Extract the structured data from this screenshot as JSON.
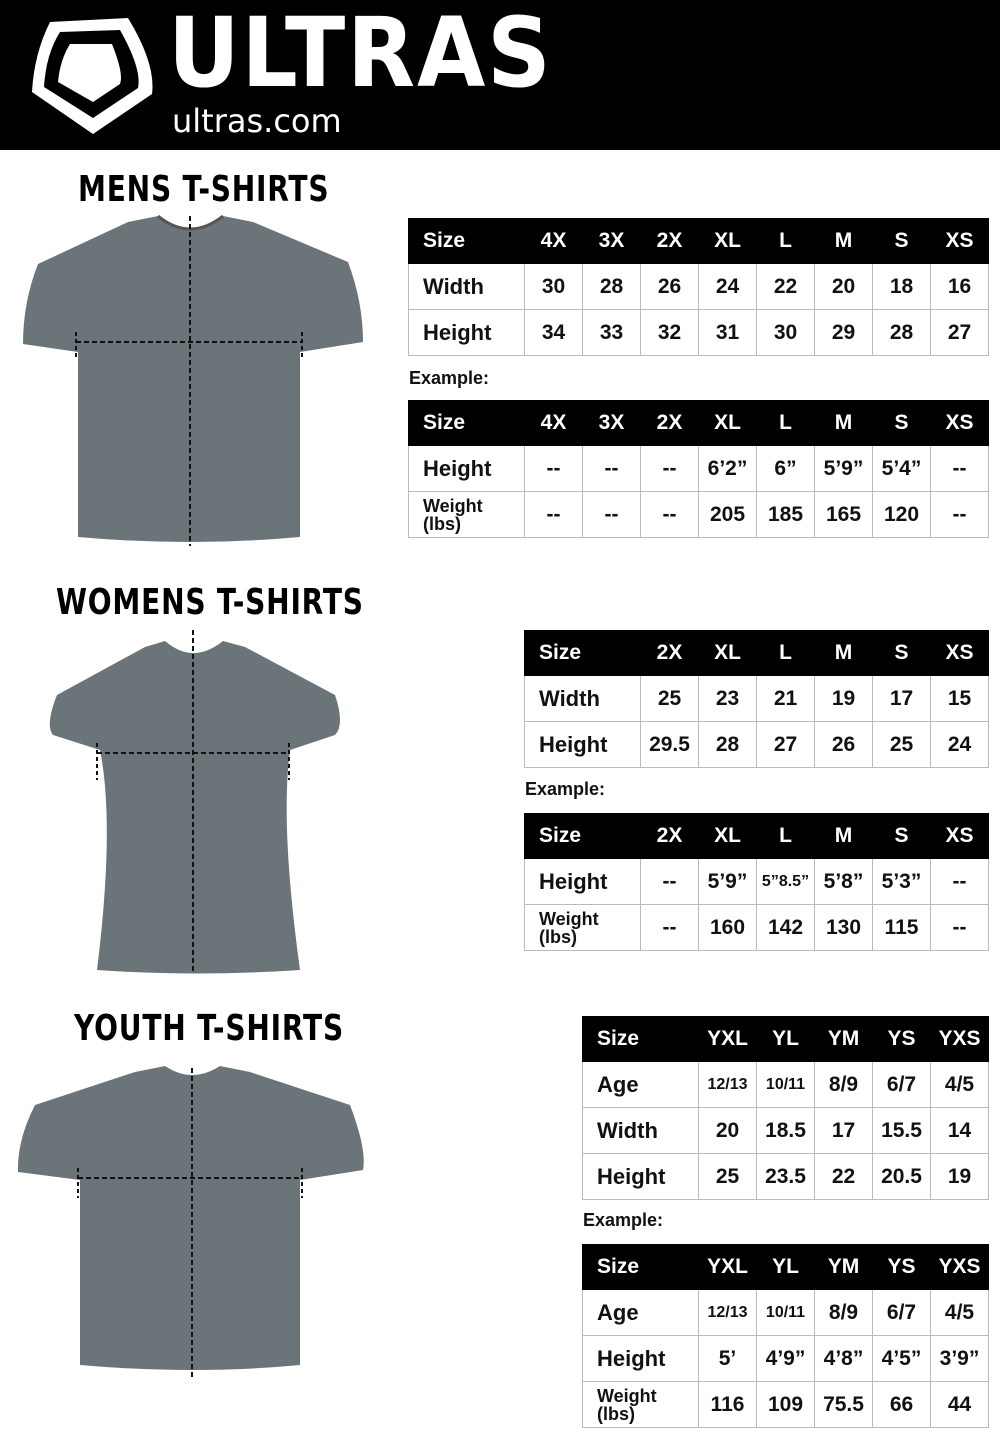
{
  "header": {
    "brand": "ULTRAS",
    "site": "ultras.com",
    "icon": "shield-logo-icon"
  },
  "colors": {
    "header_bg": "#000000",
    "shirt": "#6b7479"
  },
  "sections": [
    {
      "key": "mens",
      "title": "MENS  T-SHIRTS",
      "sizes": {
        "columns": [
          "Size",
          "4X",
          "3X",
          "2X",
          "XL",
          "L",
          "M",
          "S",
          "XS"
        ],
        "rows": [
          [
            "Width",
            "30",
            "28",
            "26",
            "24",
            "22",
            "20",
            "18",
            "16"
          ],
          [
            "Height",
            "34",
            "33",
            "32",
            "31",
            "30",
            "29",
            "28",
            "27"
          ]
        ]
      },
      "example_label": "Example:",
      "example": {
        "columns": [
          "Size",
          "4X",
          "3X",
          "2X",
          "XL",
          "L",
          "M",
          "S",
          "XS"
        ],
        "rows": [
          [
            "Height",
            "--",
            "--",
            "--",
            "6’2”",
            "6”",
            "5’9”",
            "5’4”",
            "--"
          ],
          [
            "Weight (lbs)",
            "--",
            "--",
            "--",
            "205",
            "185",
            "165",
            "120",
            "--"
          ]
        ]
      }
    },
    {
      "key": "womens",
      "title": "WOMENS  T-SHIRTS",
      "sizes": {
        "columns": [
          "Size",
          "2X",
          "XL",
          "L",
          "M",
          "S",
          "XS"
        ],
        "rows": [
          [
            "Width",
            "25",
            "23",
            "21",
            "19",
            "17",
            "15"
          ],
          [
            "Height",
            "29.5",
            "28",
            "27",
            "26",
            "25",
            "24"
          ]
        ]
      },
      "example_label": "Example:",
      "example": {
        "columns": [
          "Size",
          "2X",
          "XL",
          "L",
          "M",
          "S",
          "XS"
        ],
        "rows": [
          [
            "Height",
            "--",
            "5’9”",
            "5”8.5”",
            "5’8”",
            "5’3”",
            "--"
          ],
          [
            "Weight (lbs)",
            "--",
            "160",
            "142",
            "130",
            "115",
            "--"
          ]
        ]
      }
    },
    {
      "key": "youth",
      "title": "YOUTH  T-SHIRTS",
      "sizes": {
        "columns": [
          "Size",
          "YXL",
          "YL",
          "YM",
          "YS",
          "YXS"
        ],
        "rows": [
          [
            "Age",
            "12/13",
            "10/11",
            "8/9",
            "6/7",
            "4/5"
          ],
          [
            "Width",
            "20",
            "18.5",
            "17",
            "15.5",
            "14"
          ],
          [
            "Height",
            "25",
            "23.5",
            "22",
            "20.5",
            "19"
          ]
        ]
      },
      "example_label": "Example:",
      "example": {
        "columns": [
          "Size",
          "YXL",
          "YL",
          "YM",
          "YS",
          "YXS"
        ],
        "rows": [
          [
            "Age",
            "12/13",
            "10/11",
            "8/9",
            "6/7",
            "4/5"
          ],
          [
            "Height",
            "5’",
            "4’9”",
            "4’8”",
            "4’5”",
            "3’9”"
          ],
          [
            "Weight (lbs)",
            "116",
            "109",
            "75.5",
            "66",
            "44"
          ]
        ]
      }
    }
  ]
}
